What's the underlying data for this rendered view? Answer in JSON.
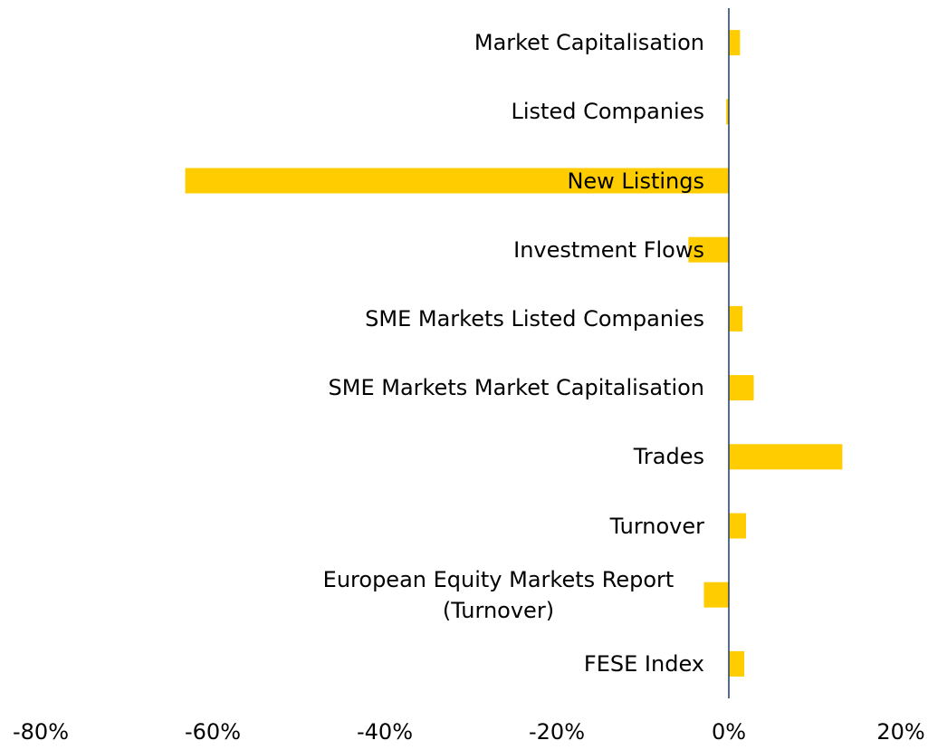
{
  "chart_data": {
    "type": "barh",
    "categories": [
      "Market Capitalisation",
      "Listed Companies",
      "New Listings",
      "Investment Flows",
      "SME Markets Listed Companies",
      "SME Markets Market Capitalisation",
      "Trades",
      "Turnover",
      "European Equity Markets Report (Turnover)",
      "FESE Index"
    ],
    "values": [
      1.3,
      -0.3,
      -63.2,
      -4.7,
      1.6,
      2.9,
      13.2,
      2.0,
      -2.9,
      1.8
    ],
    "color": "#ffcc00",
    "xlim": [
      -80,
      20
    ],
    "xticks": [
      {
        "value": -80,
        "label": "-80%"
      },
      {
        "value": -60,
        "label": "-60%"
      },
      {
        "value": -40,
        "label": "-40%"
      },
      {
        "value": -20,
        "label": "-20%"
      },
      {
        "value": 0,
        "label": "0%"
      },
      {
        "value": 20,
        "label": "20%"
      }
    ],
    "grid": false
  }
}
